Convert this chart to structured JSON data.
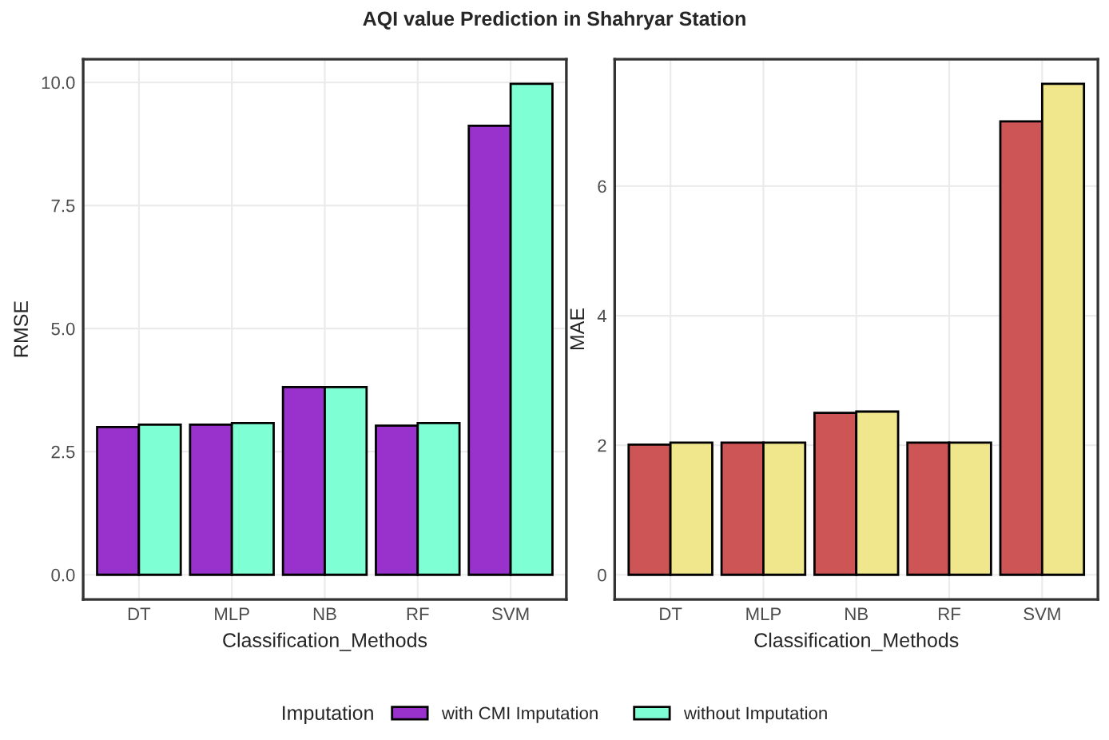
{
  "chart_data": [
    {
      "type": "bar",
      "title": "AQI value Prediction in Shahryar Station",
      "xlabel": "Classification_Methods",
      "ylabel": "RMSE",
      "categories": [
        "DT",
        "MLP",
        "NB",
        "RF",
        "SVM"
      ],
      "series": [
        {
          "name": "with CMI Imputation",
          "color": "#9932cc",
          "values": [
            3.0,
            3.05,
            3.81,
            3.03,
            9.12
          ]
        },
        {
          "name": "without Imputation",
          "color": "#7fffd4",
          "values": [
            3.05,
            3.08,
            3.81,
            3.08,
            9.97
          ]
        }
      ],
      "ylim": [
        -0.5,
        10.47
      ],
      "yticks": [
        {
          "value": 0,
          "label": "0.0"
        },
        2.5,
        {
          "value": 5,
          "label": "5.0"
        },
        7.5,
        {
          "value": 10,
          "label": "10.0"
        }
      ],
      "grid": true,
      "legend": "bottom",
      "legend_title": "Imputation"
    },
    {
      "type": "bar",
      "xlabel": "Classification_Methods",
      "ylabel": "MAE",
      "categories": [
        "DT",
        "MLP",
        "NB",
        "RF",
        "SVM"
      ],
      "series": [
        {
          "color": "#cd5555",
          "values": [
            2.01,
            2.04,
            2.5,
            2.04,
            7.0
          ]
        },
        {
          "color": "#f0e68c",
          "values": [
            2.04,
            2.04,
            2.52,
            2.04,
            7.58
          ]
        }
      ],
      "ylim": [
        -0.38,
        7.96
      ],
      "yticks": [
        0,
        2,
        4,
        6
      ],
      "grid": true
    }
  ]
}
